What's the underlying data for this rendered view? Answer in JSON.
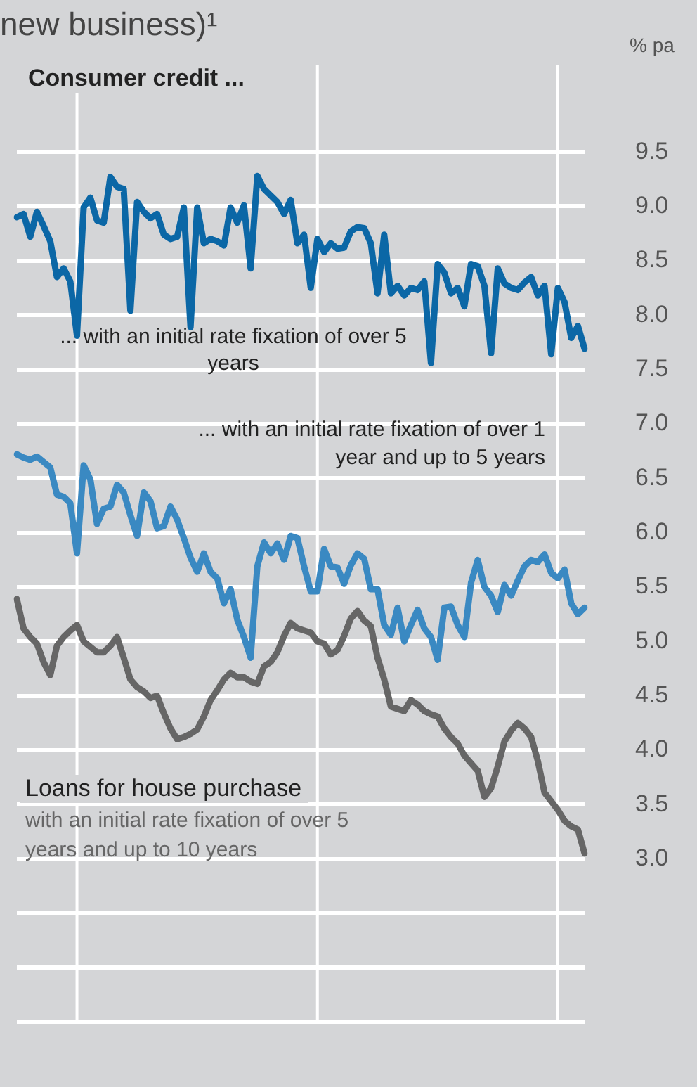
{
  "chart_data": {
    "type": "line",
    "title": "new business)¹",
    "ylabel": "% pa",
    "annotations": [
      "Consumer credit ...",
      "Loans for house purchase"
    ],
    "categories": [
      null,
      null,
      null,
      null,
      null,
      null,
      null,
      null,
      null,
      null,
      null,
      null,
      null,
      null,
      null,
      null,
      null,
      null,
      null,
      null,
      null,
      null,
      null,
      null,
      null,
      null,
      null,
      null,
      null,
      null,
      null,
      null,
      null,
      null,
      null,
      null,
      null,
      null,
      null,
      null,
      null,
      null,
      null,
      null,
      null,
      null,
      null,
      null,
      null,
      null,
      null,
      null,
      null,
      null,
      null,
      null,
      null,
      null,
      null,
      null,
      null,
      null,
      null,
      null,
      null,
      null,
      null,
      null,
      null,
      null,
      null,
      null,
      null,
      null,
      null,
      null,
      null,
      null,
      null,
      null,
      null,
      null,
      null,
      null,
      null,
      null
    ],
    "ylim": [
      1.5,
      10.3
    ],
    "yticks": [
      {
        "value": 1.5,
        "label": null
      },
      {
        "value": 2,
        "label": null
      },
      {
        "value": 2.5,
        "label": null
      },
      {
        "value": 3,
        "label": "3.0"
      },
      3.5,
      {
        "value": 4,
        "label": "4.0"
      },
      4.5,
      {
        "value": 5,
        "label": "5.0"
      },
      5.5,
      {
        "value": 6,
        "label": "6.0"
      },
      6.5,
      {
        "value": 7,
        "label": "7.0"
      },
      7.5,
      {
        "value": 8,
        "label": "8.0"
      },
      8.5,
      {
        "value": 9,
        "label": "9.0"
      },
      9.5
    ],
    "tick_labels": "y",
    "grid": true,
    "legend": false,
    "marker": "none",
    "series": [
      {
        "name": "... with an initial rate fixation of over 5 years",
        "color": "#0b67a6",
        "values": [
          8.9,
          8.93,
          8.72,
          8.95,
          8.82,
          8.68,
          8.35,
          8.43,
          8.31,
          7.81,
          8.99,
          9.08,
          8.87,
          8.85,
          9.27,
          9.18,
          9.16,
          8.04,
          9.04,
          8.95,
          8.89,
          8.93,
          8.74,
          8.7,
          8.72,
          8.99,
          7.89,
          8.99,
          8.66,
          8.7,
          8.68,
          8.64,
          8.99,
          8.85,
          9.01,
          8.43,
          9.28,
          9.16,
          9.1,
          9.04,
          8.93,
          9.06,
          8.66,
          8.74,
          8.25,
          8.7,
          8.58,
          8.66,
          8.61,
          8.62,
          8.77,
          8.81,
          8.8,
          8.66,
          8.2,
          8.74,
          8.2,
          8.27,
          8.18,
          8.25,
          8.23,
          8.31,
          7.56,
          8.47,
          8.39,
          8.2,
          8.25,
          8.08,
          8.47,
          8.45,
          8.27,
          7.65,
          8.43,
          8.29,
          8.25,
          8.23,
          8.3,
          8.35,
          8.18,
          8.27,
          7.64,
          8.25,
          8.12,
          7.79,
          7.9,
          7.69
        ]
      },
      {
        "name": "... with an initial rate fixation of over 1 year and up to 5 years",
        "color": "#3a89c2",
        "values": [
          6.72,
          6.69,
          6.67,
          6.7,
          6.65,
          6.6,
          6.35,
          6.33,
          6.27,
          5.81,
          6.62,
          6.49,
          6.08,
          6.22,
          6.24,
          6.44,
          6.37,
          6.16,
          5.97,
          6.37,
          6.29,
          6.04,
          6.06,
          6.24,
          6.12,
          5.95,
          5.77,
          5.64,
          5.81,
          5.64,
          5.58,
          5.35,
          5.48,
          5.2,
          5.04,
          4.85,
          5.69,
          5.91,
          5.81,
          5.9,
          5.75,
          5.97,
          5.95,
          5.69,
          5.46,
          5.46,
          5.85,
          5.69,
          5.68,
          5.53,
          5.7,
          5.81,
          5.76,
          5.48,
          5.48,
          5.15,
          5.06,
          5.31,
          5.0,
          5.15,
          5.29,
          5.12,
          5.04,
          4.83,
          5.31,
          5.32,
          5.15,
          5.04,
          5.54,
          5.75,
          5.5,
          5.42,
          5.27,
          5.52,
          5.42,
          5.56,
          5.69,
          5.75,
          5.73,
          5.8,
          5.63,
          5.58,
          5.66,
          5.35,
          5.25,
          5.31
        ]
      },
      {
        "name": "with an initial rate fixation of over 5 years and up to 10 years",
        "color": "#666666",
        "values": [
          5.39,
          5.12,
          5.04,
          4.98,
          4.81,
          4.69,
          4.96,
          5.04,
          5.1,
          5.15,
          5.0,
          4.95,
          4.9,
          4.9,
          4.96,
          5.04,
          4.85,
          4.65,
          4.58,
          4.54,
          4.48,
          4.5,
          4.34,
          4.2,
          4.1,
          4.12,
          4.15,
          4.19,
          4.31,
          4.46,
          4.55,
          4.65,
          4.71,
          4.67,
          4.67,
          4.63,
          4.61,
          4.77,
          4.81,
          4.9,
          5.05,
          5.17,
          5.12,
          5.1,
          5.08,
          5.0,
          4.98,
          4.88,
          4.92,
          5.05,
          5.21,
          5.28,
          5.19,
          5.14,
          4.85,
          4.65,
          4.4,
          4.38,
          4.36,
          4.46,
          4.42,
          4.36,
          4.33,
          4.31,
          4.2,
          4.12,
          4.06,
          3.95,
          3.88,
          3.81,
          3.57,
          3.65,
          3.85,
          4.08,
          4.18,
          4.25,
          4.2,
          4.12,
          3.9,
          3.61,
          3.53,
          3.45,
          3.35,
          3.3,
          3.27,
          3.05
        ]
      }
    ]
  }
}
